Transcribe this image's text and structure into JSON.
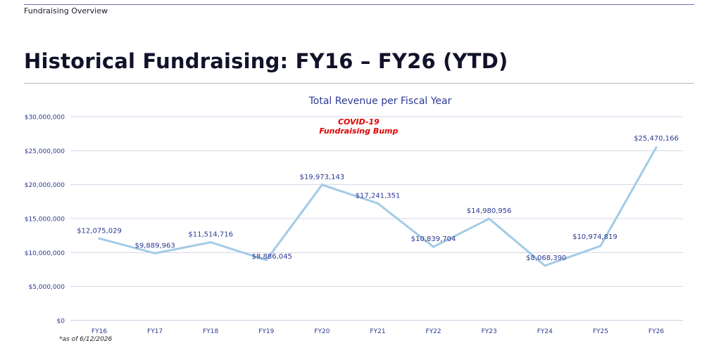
{
  "header": {
    "section_label": "Fundraising Overview",
    "page_title": "Historical Fundraising: FY16 – FY26 (YTD)"
  },
  "footnote": "*as of 6/12/2026",
  "colors": {
    "line": "#a3cbe6",
    "text": "#2b3990",
    "grid": "#d6d6ea",
    "annotation": "#e00000"
  },
  "chart_data": {
    "type": "line",
    "title": "Total Revenue per Fiscal Year",
    "xlabel": "",
    "ylabel": "",
    "categories": [
      "FY16",
      "FY17",
      "FY18",
      "FY19",
      "FY20",
      "FY21",
      "FY22",
      "FY23",
      "FY24",
      "FY25",
      "FY26"
    ],
    "values": [
      12075029,
      9889963,
      11514716,
      8886045,
      19973143,
      17241351,
      10839704,
      14980956,
      8068390,
      10974819,
      25470166
    ],
    "value_labels": [
      "$12,075,029",
      "$9,889,963",
      "$11,514,716",
      "$8,886,045",
      "$19,973,143",
      "$17,241,351",
      "$10,839,704",
      "$14,980,956",
      "$8,068,390",
      "$10,974,819",
      "$25,470,166"
    ],
    "ylim": [
      0,
      30000000
    ],
    "yticks": [
      0,
      5000000,
      10000000,
      15000000,
      20000000,
      25000000,
      30000000
    ],
    "ytick_labels": [
      "$0",
      "$5,000,000",
      "$10,000,000",
      "$15,000,000",
      "$20,000,000",
      "$25,000,000",
      "$30,000,000"
    ],
    "grid": true,
    "annotations": [
      {
        "text_lines": [
          "COVID-19",
          "Fundraising Bump"
        ],
        "category": "FY20"
      }
    ]
  }
}
